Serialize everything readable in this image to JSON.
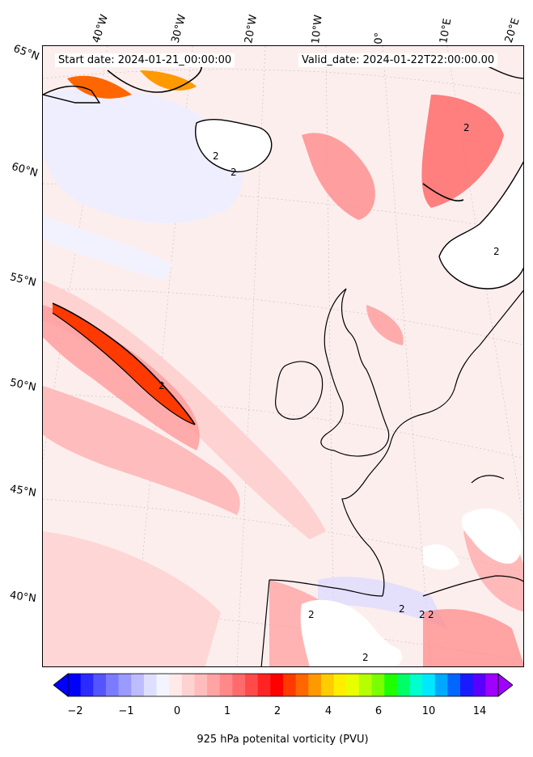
{
  "header": {
    "start_date": "Start date: 2024-01-21_00:00:00",
    "valid_date": "Valid_date: 2024-01-22T22:00:00.00"
  },
  "longitude_labels": [
    "40°W",
    "30°W",
    "20°W",
    "10°W",
    "0°",
    "10°E",
    "20°E"
  ],
  "latitude_labels": [
    "65°N",
    "60°N",
    "55°N",
    "50°N",
    "45°N",
    "40°N"
  ],
  "colorbar": {
    "title": "925 hPa potenital vorticity (PVU)",
    "tick_labels": [
      "−2",
      "−1",
      "0",
      "1",
      "2",
      "4",
      "6",
      "10",
      "14"
    ],
    "colors": [
      "#0000ff",
      "#2b2bff",
      "#5555ff",
      "#7b7bff",
      "#9a9aff",
      "#bcbcff",
      "#dedeff",
      "#f4f4ff",
      "#ffe9e9",
      "#ffd2d2",
      "#ffbcbc",
      "#ffa3a3",
      "#ff8888",
      "#ff6a6a",
      "#ff4a4a",
      "#ff2424",
      "#ff0000",
      "#ff3a00",
      "#ff6600",
      "#ff9900",
      "#ffcc00",
      "#ffee00",
      "#e8ff00",
      "#b6ff00",
      "#7aff00",
      "#1eff00",
      "#00ff66",
      "#00ffcc",
      "#00e8ff",
      "#00a8ff",
      "#0066ff",
      "#1a1aff",
      "#5a00ff",
      "#a000ff"
    ]
  },
  "map": {
    "contour_label": "2",
    "background_color": "#fdeeee",
    "positive_colors": [
      "#ffdada",
      "#ffb8b8",
      "#ff8a8a",
      "#ff5a5a",
      "#ff2a2a"
    ],
    "negative_color": "#eeeeff"
  }
}
